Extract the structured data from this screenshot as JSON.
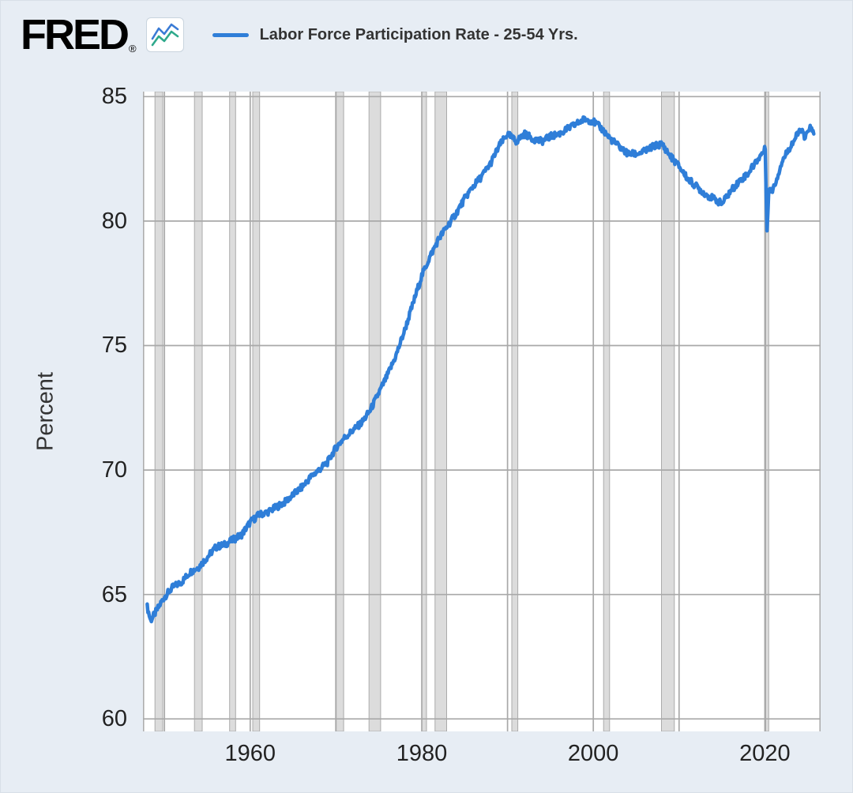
{
  "header": {
    "logo_text": "FRED",
    "registered": "®",
    "legend_label": "Labor Force Participation Rate - 25-54 Yrs."
  },
  "chart_data": {
    "type": "line",
    "title": "Labor Force Participation Rate - 25-54 Yrs.",
    "xlabel": "",
    "ylabel": "Percent",
    "xlim": [
      1947.5,
      2026.5
    ],
    "ylim": [
      59.5,
      85.2
    ],
    "xticks": [
      1960,
      1980,
      2000,
      2020
    ],
    "yticks": [
      60,
      65,
      70,
      75,
      80,
      85
    ],
    "grid_decades": [
      1950,
      1960,
      1970,
      1980,
      1990,
      2000,
      2010,
      2020
    ],
    "legend_position": "top",
    "grid": true,
    "series": [
      {
        "name": "Labor Force Participation Rate - 25-54 Yrs.",
        "color": "#2f7ed8",
        "points": [
          [
            1948.0,
            64.5
          ],
          [
            1948.4,
            63.95
          ],
          [
            1949,
            64.3
          ],
          [
            1950,
            64.9
          ],
          [
            1951,
            65.3
          ],
          [
            1952,
            65.5
          ],
          [
            1953,
            65.9
          ],
          [
            1954,
            66.1
          ],
          [
            1955,
            66.5
          ],
          [
            1956,
            66.9
          ],
          [
            1957,
            67.0
          ],
          [
            1958,
            67.2
          ],
          [
            1959,
            67.4
          ],
          [
            1960,
            67.9
          ],
          [
            1961,
            68.2
          ],
          [
            1962,
            68.3
          ],
          [
            1963,
            68.5
          ],
          [
            1964,
            68.7
          ],
          [
            1965,
            69.0
          ],
          [
            1966,
            69.3
          ],
          [
            1967,
            69.7
          ],
          [
            1968,
            70.0
          ],
          [
            1969,
            70.3
          ],
          [
            1970,
            70.9
          ],
          [
            1971,
            71.3
          ],
          [
            1972,
            71.6
          ],
          [
            1973,
            71.9
          ],
          [
            1974,
            72.4
          ],
          [
            1975,
            73.1
          ],
          [
            1976,
            73.8
          ],
          [
            1977,
            74.6
          ],
          [
            1978,
            75.6
          ],
          [
            1979,
            76.7
          ],
          [
            1980,
            77.8
          ],
          [
            1981,
            78.6
          ],
          [
            1982,
            79.3
          ],
          [
            1983,
            79.8
          ],
          [
            1984,
            80.3
          ],
          [
            1985,
            80.9
          ],
          [
            1986,
            81.4
          ],
          [
            1987,
            81.8
          ],
          [
            1988,
            82.3
          ],
          [
            1989,
            83.0
          ],
          [
            1990,
            83.5
          ],
          [
            1991,
            83.2
          ],
          [
            1992,
            83.5
          ],
          [
            1993,
            83.3
          ],
          [
            1994,
            83.2
          ],
          [
            1995,
            83.4
          ],
          [
            1996,
            83.5
          ],
          [
            1997,
            83.7
          ],
          [
            1998,
            83.9
          ],
          [
            1999,
            84.1
          ],
          [
            2000,
            84.0
          ],
          [
            2001,
            83.7
          ],
          [
            2002,
            83.3
          ],
          [
            2003,
            83.0
          ],
          [
            2004,
            82.7
          ],
          [
            2005,
            82.7
          ],
          [
            2006,
            82.8
          ],
          [
            2007,
            83.0
          ],
          [
            2008,
            83.1
          ],
          [
            2009,
            82.6
          ],
          [
            2010,
            82.2
          ],
          [
            2011,
            81.7
          ],
          [
            2012,
            81.4
          ],
          [
            2013,
            81.1
          ],
          [
            2014,
            80.9
          ],
          [
            2015,
            80.7
          ],
          [
            2016,
            81.2
          ],
          [
            2017,
            81.6
          ],
          [
            2018,
            81.9
          ],
          [
            2019,
            82.4
          ],
          [
            2020.05,
            82.9
          ],
          [
            2020.25,
            79.6
          ],
          [
            2020.45,
            81.3
          ],
          [
            2020.8,
            81.2
          ],
          [
            2021.3,
            81.6
          ],
          [
            2022,
            82.4
          ],
          [
            2022.8,
            82.9
          ],
          [
            2023.5,
            83.3
          ],
          [
            2024.2,
            83.7
          ],
          [
            2024.7,
            83.3
          ],
          [
            2025.2,
            83.8
          ],
          [
            2025.7,
            83.5
          ]
        ]
      }
    ],
    "recessions": [
      [
        1948.9,
        1949.8
      ],
      [
        1953.5,
        1954.4
      ],
      [
        1957.6,
        1958.3
      ],
      [
        1960.3,
        1961.1
      ],
      [
        1969.95,
        1970.9
      ],
      [
        1973.85,
        1975.2
      ],
      [
        1980.0,
        1980.55
      ],
      [
        1981.55,
        1982.9
      ],
      [
        1990.5,
        1991.2
      ],
      [
        2001.2,
        2001.9
      ],
      [
        2007.95,
        2009.45
      ],
      [
        2020.1,
        2020.45
      ]
    ],
    "colors": {
      "line": "#2f7ed8",
      "grid": "#a9a9a9",
      "recession": "#dcdcdc",
      "recession_edge": "#ababab",
      "plot_bg": "#ffffff",
      "page_bg": "#e7edf4",
      "text": "#222222"
    }
  }
}
